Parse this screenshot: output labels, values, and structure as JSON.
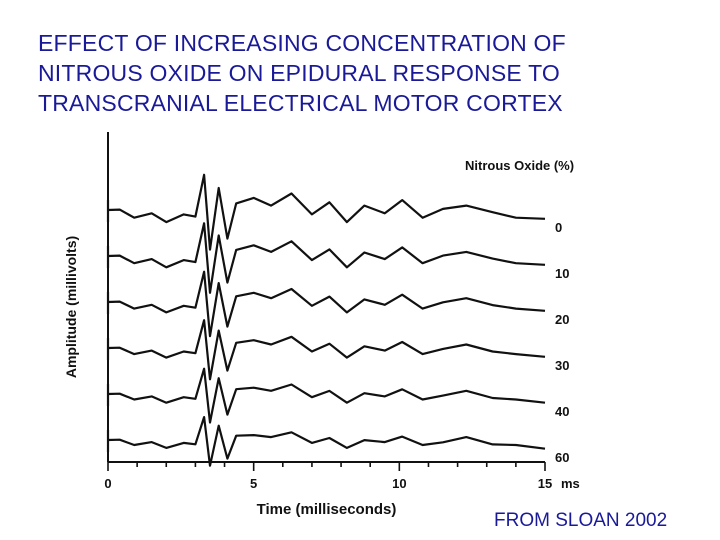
{
  "slide": {
    "title_lines": [
      "EFFECT OF INCREASING CONCENTRATION OF",
      "NITROUS OXIDE ON EPIDURAL RESPONSE TO",
      "TRANSCRANIAL ELECTRICAL MOTOR CORTEX"
    ],
    "credit": "FROM SLOAN 2002"
  },
  "chart_data": {
    "type": "line",
    "xlabel": "Time (milliseconds)",
    "ylabel": "Amplitude (millivolts)",
    "x_unit": "ms",
    "xlim": [
      0,
      15
    ],
    "x_ticks": [
      "0",
      "5",
      "10",
      "15"
    ],
    "legend_title": "Nitrous Oxide (%)",
    "legend_placement": "right",
    "grid": false,
    "series": [
      {
        "name": "0",
        "baseline_rank": 0
      },
      {
        "name": "10",
        "baseline_rank": 1
      },
      {
        "name": "20",
        "baseline_rank": 2
      },
      {
        "name": "30",
        "baseline_rank": 3
      },
      {
        "name": "40",
        "baseline_rank": 4
      },
      {
        "name": "60",
        "baseline_rank": 5
      }
    ],
    "waveform_ms": [
      [
        0,
        0
      ],
      [
        0.4,
        0.02
      ],
      [
        0.9,
        -0.35
      ],
      [
        1.5,
        -0.15
      ],
      [
        2.0,
        -0.55
      ],
      [
        2.6,
        -0.2
      ],
      [
        3.0,
        -0.3
      ],
      [
        3.3,
        1.6
      ],
      [
        3.5,
        -1.8
      ],
      [
        3.8,
        1.0
      ],
      [
        4.1,
        -1.3
      ],
      [
        4.4,
        0.3
      ],
      [
        5.0,
        0.55
      ],
      [
        5.6,
        0.2
      ],
      [
        6.3,
        0.75
      ],
      [
        7.0,
        -0.2
      ],
      [
        7.6,
        0.35
      ],
      [
        8.2,
        -0.55
      ],
      [
        8.8,
        0.2
      ],
      [
        9.5,
        -0.15
      ],
      [
        10.1,
        0.45
      ],
      [
        10.8,
        -0.35
      ],
      [
        11.5,
        0.05
      ],
      [
        12.3,
        0.2
      ],
      [
        13.2,
        -0.1
      ],
      [
        14.0,
        -0.35
      ],
      [
        15.0,
        -0.4
      ]
    ]
  }
}
